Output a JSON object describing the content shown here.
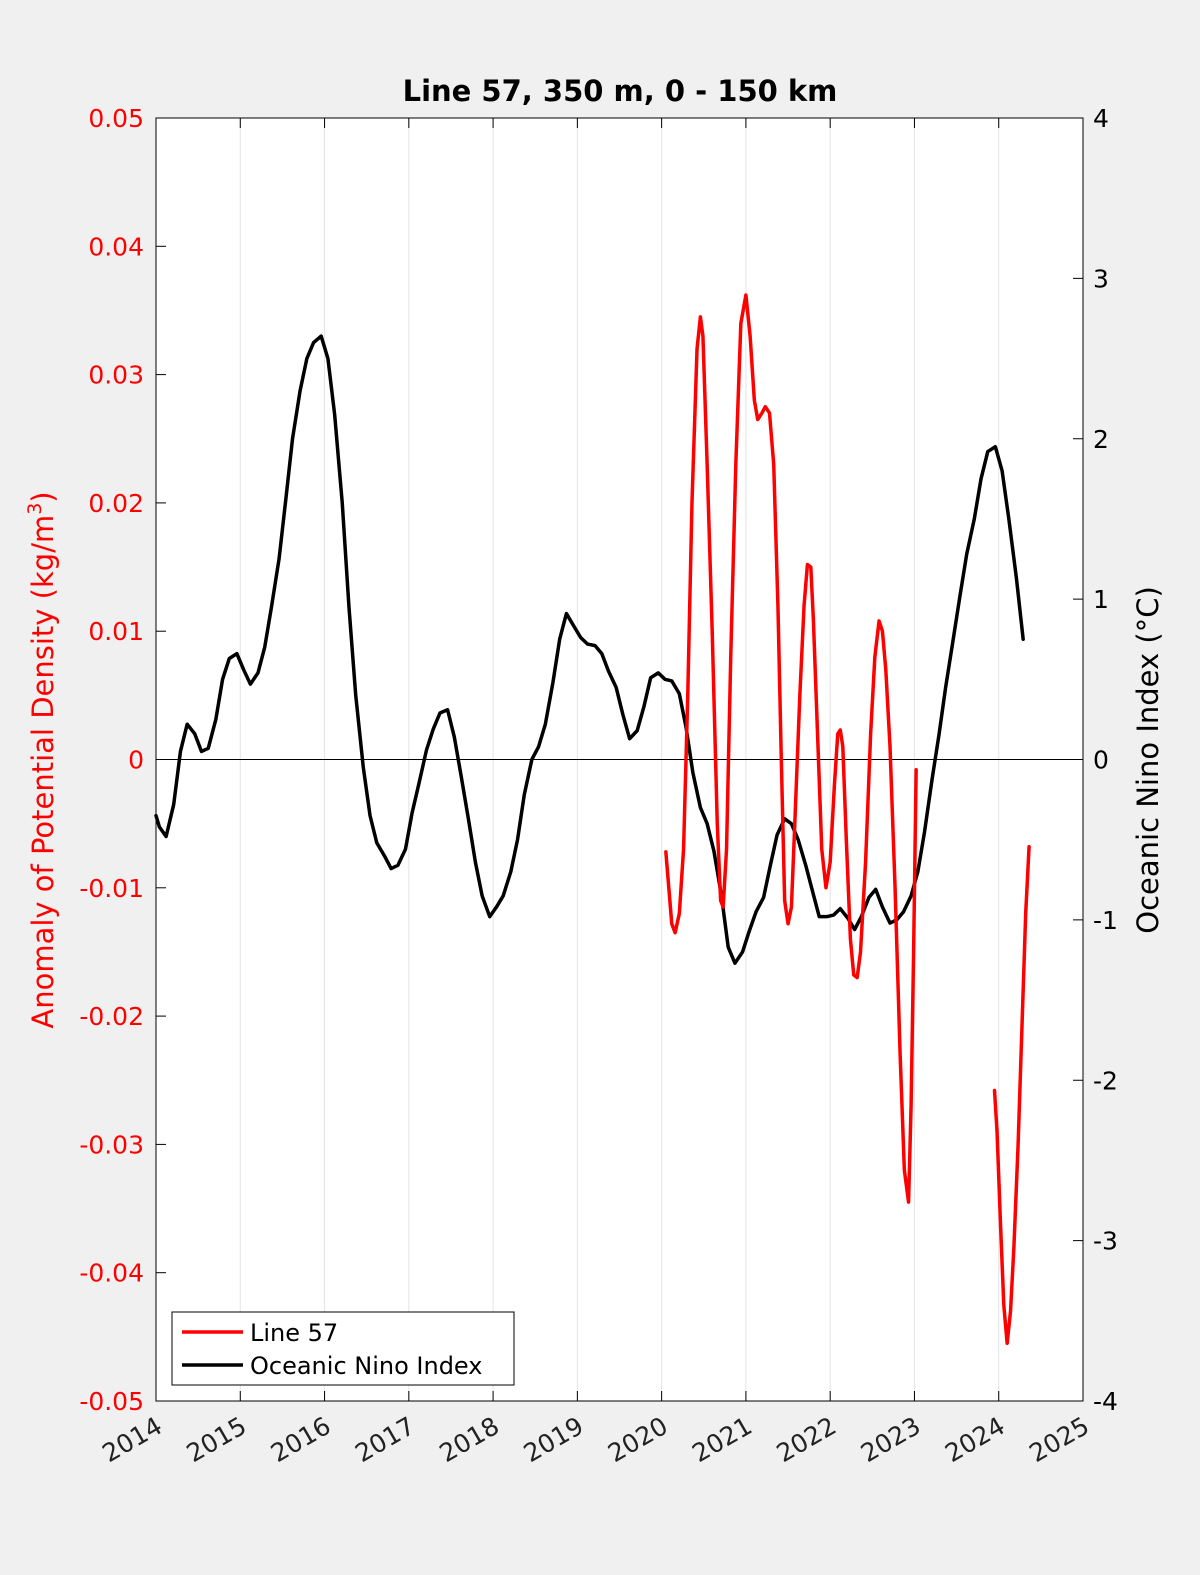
{
  "chart_data": {
    "type": "line",
    "title": "Line 57, 350 m, 0 - 150 km",
    "xlabel": "",
    "ylabel_left": "Anomaly of Potential Density (kg/m³)",
    "ylabel_left_base": "Anomaly of Potential Density (kg/m",
    "ylabel_left_sup": "3",
    "ylabel_left_end": ")",
    "ylabel_right": "Oceanic Nino Index (°C)",
    "xlim": [
      2014,
      2025
    ],
    "ylim_left": [
      -0.05,
      0.05
    ],
    "ylim_right": [
      -4,
      4
    ],
    "grid": "vertical",
    "legend_position": "bottom-left",
    "x_ticks": [
      "2014",
      "2015",
      "2016",
      "2017",
      "2018",
      "2019",
      "2020",
      "2021",
      "2022",
      "2023",
      "2024",
      "2025"
    ],
    "y_left_ticks": [
      "0.05",
      "0.04",
      "0.03",
      "0.02",
      "0.01",
      "0",
      "-0.01",
      "-0.02",
      "-0.03",
      "-0.04",
      "-0.05"
    ],
    "y_right_ticks": [
      "4",
      "3",
      "2",
      "1",
      "0",
      "-1",
      "-2",
      "-3",
      "-4"
    ],
    "series": [
      {
        "name": "Line 57",
        "axis": "left",
        "color": "#ff0000",
        "segments": [
          [
            [
              2020.05,
              -0.0072
            ],
            [
              2020.12,
              -0.0128
            ],
            [
              2020.16,
              -0.0135
            ],
            [
              2020.21,
              -0.012
            ],
            [
              2020.26,
              -0.007
            ],
            [
              2020.31,
              0.005
            ],
            [
              2020.36,
              0.02
            ],
            [
              2020.42,
              0.032
            ],
            [
              2020.46,
              0.0345
            ],
            [
              2020.49,
              0.033
            ],
            [
              2020.54,
              0.023
            ],
            [
              2020.6,
              0.01
            ],
            [
              2020.66,
              -0.005
            ],
            [
              2020.7,
              -0.011
            ],
            [
              2020.73,
              -0.0115
            ],
            [
              2020.77,
              -0.007
            ],
            [
              2020.82,
              0.008
            ],
            [
              2020.88,
              0.023
            ],
            [
              2020.94,
              0.034
            ],
            [
              2021.0,
              0.0362
            ],
            [
              2021.05,
              0.033
            ],
            [
              2021.1,
              0.028
            ],
            [
              2021.14,
              0.0265
            ],
            [
              2021.19,
              0.027
            ],
            [
              2021.23,
              0.0275
            ],
            [
              2021.28,
              0.027
            ],
            [
              2021.33,
              0.023
            ],
            [
              2021.38,
              0.012
            ],
            [
              2021.42,
              0.0
            ],
            [
              2021.46,
              -0.011
            ],
            [
              2021.5,
              -0.0128
            ],
            [
              2021.54,
              -0.0115
            ],
            [
              2021.58,
              -0.005
            ],
            [
              2021.64,
              0.005
            ],
            [
              2021.69,
              0.012
            ],
            [
              2021.73,
              0.0152
            ],
            [
              2021.77,
              0.015
            ],
            [
              2021.8,
              0.011
            ],
            [
              2021.85,
              0.002
            ],
            [
              2021.9,
              -0.007
            ],
            [
              2021.95,
              -0.01
            ],
            [
              2022.0,
              -0.008
            ],
            [
              2022.05,
              -0.002
            ],
            [
              2022.09,
              0.002
            ],
            [
              2022.12,
              0.0023
            ],
            [
              2022.15,
              0.001
            ],
            [
              2022.19,
              -0.006
            ],
            [
              2022.24,
              -0.014
            ],
            [
              2022.28,
              -0.0168
            ],
            [
              2022.32,
              -0.017
            ],
            [
              2022.36,
              -0.015
            ],
            [
              2022.42,
              -0.008
            ],
            [
              2022.48,
              0.002
            ],
            [
              2022.53,
              0.008
            ],
            [
              2022.58,
              0.0108
            ],
            [
              2022.62,
              0.01
            ],
            [
              2022.66,
              0.007
            ],
            [
              2022.71,
              0.001
            ],
            [
              2022.77,
              -0.01
            ],
            [
              2022.83,
              -0.023
            ],
            [
              2022.88,
              -0.032
            ],
            [
              2022.93,
              -0.0345
            ],
            [
              2022.96,
              -0.027
            ],
            [
              2022.99,
              -0.015
            ],
            [
              2023.02,
              -0.0008
            ]
          ],
          [
            [
              2023.95,
              -0.0258
            ],
            [
              2023.98,
              -0.029
            ],
            [
              2024.02,
              -0.036
            ],
            [
              2024.06,
              -0.0425
            ],
            [
              2024.1,
              -0.0455
            ],
            [
              2024.14,
              -0.043
            ],
            [
              2024.18,
              -0.038
            ],
            [
              2024.23,
              -0.03
            ],
            [
              2024.28,
              -0.02
            ],
            [
              2024.32,
              -0.012
            ],
            [
              2024.36,
              -0.0068
            ]
          ]
        ]
      },
      {
        "name": "Oceanic Nino Index",
        "axis": "right",
        "color": "#000000",
        "segments": [
          [
            [
              2014.0,
              -0.35
            ],
            [
              2014.04,
              -0.42
            ],
            [
              2014.12,
              -0.48
            ],
            [
              2014.21,
              -0.28
            ],
            [
              2014.29,
              0.05
            ],
            [
              2014.37,
              0.22
            ],
            [
              2014.46,
              0.16
            ],
            [
              2014.54,
              0.05
            ],
            [
              2014.62,
              0.07
            ],
            [
              2014.71,
              0.25
            ],
            [
              2014.79,
              0.5
            ],
            [
              2014.87,
              0.63
            ],
            [
              2014.96,
              0.66
            ],
            [
              2015.04,
              0.56
            ],
            [
              2015.12,
              0.47
            ],
            [
              2015.21,
              0.54
            ],
            [
              2015.29,
              0.7
            ],
            [
              2015.37,
              0.95
            ],
            [
              2015.46,
              1.25
            ],
            [
              2015.54,
              1.62
            ],
            [
              2015.62,
              2.0
            ],
            [
              2015.71,
              2.3
            ],
            [
              2015.79,
              2.5
            ],
            [
              2015.87,
              2.6
            ],
            [
              2015.96,
              2.64
            ],
            [
              2016.04,
              2.5
            ],
            [
              2016.12,
              2.15
            ],
            [
              2016.21,
              1.6
            ],
            [
              2016.29,
              0.95
            ],
            [
              2016.37,
              0.4
            ],
            [
              2016.46,
              -0.05
            ],
            [
              2016.54,
              -0.35
            ],
            [
              2016.62,
              -0.52
            ],
            [
              2016.71,
              -0.6
            ],
            [
              2016.79,
              -0.68
            ],
            [
              2016.87,
              -0.66
            ],
            [
              2016.96,
              -0.56
            ],
            [
              2017.04,
              -0.33
            ],
            [
              2017.12,
              -0.15
            ],
            [
              2017.21,
              0.06
            ],
            [
              2017.29,
              0.19
            ],
            [
              2017.37,
              0.29
            ],
            [
              2017.46,
              0.31
            ],
            [
              2017.54,
              0.14
            ],
            [
              2017.62,
              -0.1
            ],
            [
              2017.71,
              -0.38
            ],
            [
              2017.79,
              -0.64
            ],
            [
              2017.87,
              -0.85
            ],
            [
              2017.96,
              -0.98
            ],
            [
              2018.04,
              -0.92
            ],
            [
              2018.12,
              -0.85
            ],
            [
              2018.21,
              -0.7
            ],
            [
              2018.29,
              -0.5
            ],
            [
              2018.37,
              -0.22
            ],
            [
              2018.46,
              0.0
            ],
            [
              2018.54,
              0.08
            ],
            [
              2018.62,
              0.22
            ],
            [
              2018.71,
              0.48
            ],
            [
              2018.79,
              0.75
            ],
            [
              2018.87,
              0.91
            ],
            [
              2018.96,
              0.83
            ],
            [
              2019.04,
              0.76
            ],
            [
              2019.12,
              0.72
            ],
            [
              2019.21,
              0.71
            ],
            [
              2019.29,
              0.66
            ],
            [
              2019.37,
              0.55
            ],
            [
              2019.46,
              0.45
            ],
            [
              2019.54,
              0.28
            ],
            [
              2019.62,
              0.13
            ],
            [
              2019.71,
              0.18
            ],
            [
              2019.79,
              0.33
            ],
            [
              2019.87,
              0.51
            ],
            [
              2019.96,
              0.54
            ],
            [
              2020.04,
              0.5
            ],
            [
              2020.12,
              0.49
            ],
            [
              2020.21,
              0.41
            ],
            [
              2020.29,
              0.2
            ],
            [
              2020.37,
              -0.08
            ],
            [
              2020.46,
              -0.3
            ],
            [
              2020.54,
              -0.4
            ],
            [
              2020.62,
              -0.57
            ],
            [
              2020.71,
              -0.85
            ],
            [
              2020.79,
              -1.17
            ],
            [
              2020.87,
              -1.27
            ],
            [
              2020.96,
              -1.2
            ],
            [
              2021.04,
              -1.07
            ],
            [
              2021.12,
              -0.95
            ],
            [
              2021.21,
              -0.86
            ],
            [
              2021.29,
              -0.66
            ],
            [
              2021.37,
              -0.47
            ],
            [
              2021.46,
              -0.37
            ],
            [
              2021.54,
              -0.4
            ],
            [
              2021.62,
              -0.5
            ],
            [
              2021.71,
              -0.66
            ],
            [
              2021.79,
              -0.82
            ],
            [
              2021.87,
              -0.98
            ],
            [
              2021.96,
              -0.98
            ],
            [
              2022.04,
              -0.97
            ],
            [
              2022.12,
              -0.93
            ],
            [
              2022.21,
              -0.99
            ],
            [
              2022.29,
              -1.06
            ],
            [
              2022.37,
              -0.98
            ],
            [
              2022.46,
              -0.86
            ],
            [
              2022.54,
              -0.81
            ],
            [
              2022.62,
              -0.92
            ],
            [
              2022.71,
              -1.02
            ],
            [
              2022.79,
              -1.0
            ],
            [
              2022.87,
              -0.95
            ],
            [
              2022.96,
              -0.85
            ],
            [
              2023.04,
              -0.7
            ],
            [
              2023.12,
              -0.45
            ],
            [
              2023.21,
              -0.12
            ],
            [
              2023.29,
              0.15
            ],
            [
              2023.37,
              0.45
            ],
            [
              2023.46,
              0.75
            ],
            [
              2023.54,
              1.02
            ],
            [
              2023.62,
              1.28
            ],
            [
              2023.71,
              1.5
            ],
            [
              2023.79,
              1.75
            ],
            [
              2023.87,
              1.92
            ],
            [
              2023.96,
              1.95
            ],
            [
              2024.04,
              1.8
            ],
            [
              2024.12,
              1.5
            ],
            [
              2024.21,
              1.13
            ],
            [
              2024.29,
              0.75
            ]
          ]
        ]
      }
    ]
  }
}
